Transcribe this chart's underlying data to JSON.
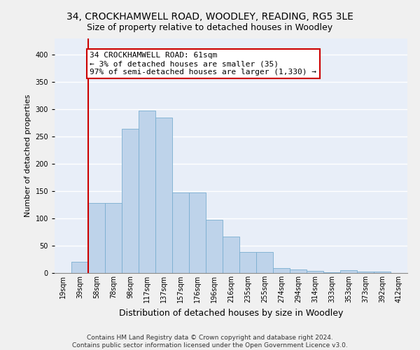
{
  "title": "34, CROCKHAMWELL ROAD, WOODLEY, READING, RG5 3LE",
  "subtitle": "Size of property relative to detached houses in Woodley",
  "xlabel": "Distribution of detached houses by size in Woodley",
  "ylabel": "Number of detached properties",
  "categories": [
    "19sqm",
    "39sqm",
    "58sqm",
    "78sqm",
    "98sqm",
    "117sqm",
    "137sqm",
    "157sqm",
    "176sqm",
    "196sqm",
    "216sqm",
    "235sqm",
    "255sqm",
    "274sqm",
    "294sqm",
    "314sqm",
    "333sqm",
    "353sqm",
    "373sqm",
    "392sqm",
    "412sqm"
  ],
  "values": [
    0,
    20,
    128,
    128,
    265,
    298,
    285,
    147,
    147,
    97,
    67,
    38,
    38,
    9,
    6,
    4,
    1,
    5,
    3,
    2,
    0
  ],
  "bar_color": "#bed3ea",
  "bar_edge_color": "#7aaed0",
  "bar_width": 1.0,
  "red_line_x": 1.5,
  "annotation_line1": "34 CROCKHAMWELL ROAD: 61sqm",
  "annotation_line2": "← 3% of detached houses are smaller (35)",
  "annotation_line3": "97% of semi-detached houses are larger (1,330) →",
  "annotation_box_color": "#ffffff",
  "annotation_box_edge_color": "#cc0000",
  "ylim": [
    0,
    430
  ],
  "yticks": [
    0,
    50,
    100,
    150,
    200,
    250,
    300,
    350,
    400
  ],
  "background_color": "#e8eef8",
  "grid_color": "#ffffff",
  "footer_line1": "Contains HM Land Registry data © Crown copyright and database right 2024.",
  "footer_line2": "Contains public sector information licensed under the Open Government Licence v3.0.",
  "title_fontsize": 10,
  "subtitle_fontsize": 9,
  "xlabel_fontsize": 9,
  "ylabel_fontsize": 8,
  "tick_fontsize": 7,
  "annotation_fontsize": 8,
  "footer_fontsize": 6.5
}
